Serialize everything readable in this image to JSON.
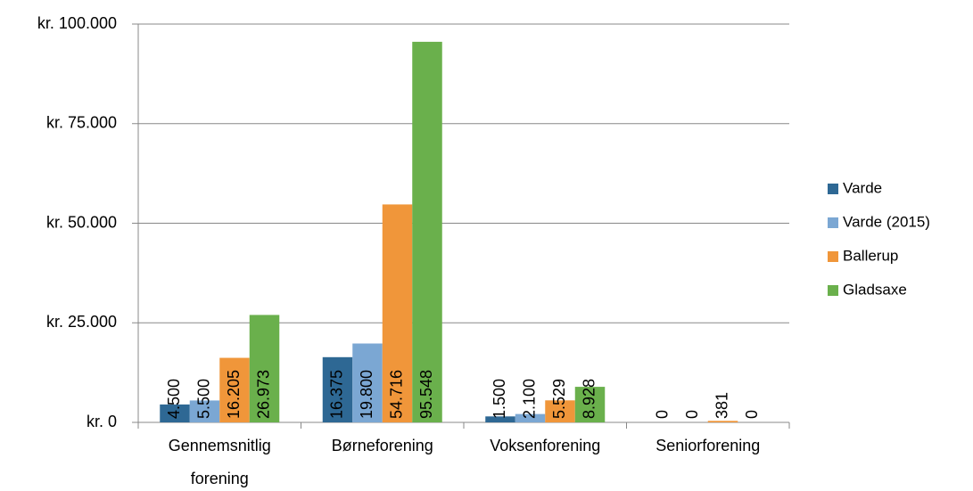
{
  "chart_data": {
    "type": "bar",
    "categories": [
      "Gennemsnitlig forening",
      "Børneforening",
      "Voksenforening",
      "Seniorforening"
    ],
    "series": [
      {
        "name": "Varde",
        "color": "#2e6894",
        "values": [
          4500,
          16375,
          1500,
          0
        ],
        "value_labels": [
          "4.500",
          "16.375",
          "1.500",
          "0"
        ]
      },
      {
        "name": "Varde (2015)",
        "color": "#7ba7d3",
        "values": [
          5500,
          19800,
          2100,
          0
        ],
        "value_labels": [
          "5.500",
          "19.800",
          "2.100",
          "0"
        ]
      },
      {
        "name": "Ballerup",
        "color": "#f0963a",
        "values": [
          16205,
          54716,
          5529,
          381
        ],
        "value_labels": [
          "16.205",
          "54.716",
          "5.529",
          "381"
        ]
      },
      {
        "name": "Gladsaxe",
        "color": "#6ab04c",
        "values": [
          26973,
          95548,
          8928,
          0
        ],
        "value_labels": [
          "26.973",
          "95.548",
          "8.928",
          "0"
        ]
      }
    ],
    "ylim": [
      0,
      100000
    ],
    "yticks": [
      {
        "value": 0,
        "label": "kr. 0"
      },
      {
        "value": 25000,
        "label": "kr. 25.000"
      },
      {
        "value": 50000,
        "label": "kr. 50.000"
      },
      {
        "value": 75000,
        "label": "kr. 75.000"
      },
      {
        "value": 100000,
        "label": "kr. 100.000"
      }
    ],
    "grid": true,
    "legend": "right"
  }
}
